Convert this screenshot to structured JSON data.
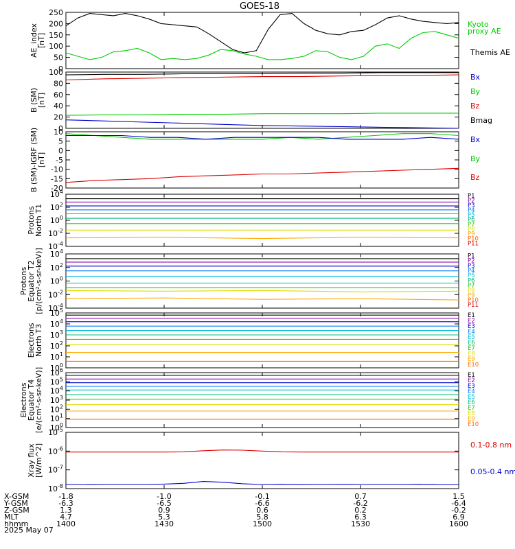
{
  "title": "GOES-18",
  "date_label": "2025 May 07",
  "colors": {
    "black": "#000000",
    "red": "#dd0000",
    "green": "#00cc00",
    "blue": "#0000cc",
    "p": [
      "#000000",
      "#8800aa",
      "#0000cc",
      "#0077ff",
      "#00bbdd",
      "#00bb77",
      "#22cc00",
      "#dddd00",
      "#ffaa00",
      "#ff6600",
      "#dd0000"
    ]
  },
  "chart_data": [
    {
      "type": "line",
      "panel": "ae",
      "ylabel": [
        "AE_index",
        "[nT]"
      ],
      "ylim": [
        0,
        250
      ],
      "yticks": [
        "250",
        "200",
        "150",
        "100",
        "50",
        "0"
      ],
      "legend": [
        {
          "label": "Kyoto",
          "color": "green"
        },
        {
          "label": "proxy AE",
          "color": "green"
        },
        {
          "label": "Themis AE",
          "color": "black"
        }
      ],
      "series": [
        {
          "name": "Themis AE",
          "color": "black",
          "values": [
            190,
            225,
            245,
            240,
            235,
            245,
            235,
            220,
            200,
            195,
            190,
            185,
            155,
            120,
            85,
            70,
            80,
            175,
            240,
            245,
            200,
            170,
            155,
            150,
            165,
            170,
            195,
            225,
            235,
            220,
            210,
            205,
            200,
            205
          ]
        },
        {
          "name": "Kyoto proxy AE",
          "color": "green",
          "values": [
            70,
            55,
            40,
            50,
            75,
            80,
            90,
            70,
            40,
            45,
            40,
            45,
            60,
            85,
            80,
            65,
            55,
            40,
            40,
            45,
            55,
            80,
            75,
            50,
            40,
            55,
            100,
            110,
            90,
            135,
            160,
            165,
            150,
            135
          ]
        }
      ]
    },
    {
      "type": "line",
      "panel": "bsm",
      "ylabel": [
        "B (SM)",
        "[nT]"
      ],
      "ylim": [
        0,
        100
      ],
      "yticks": [
        "100",
        "80",
        "60",
        "40",
        "20",
        "0"
      ],
      "legend": [
        {
          "label": "Bx",
          "color": "blue"
        },
        {
          "label": "By",
          "color": "green"
        },
        {
          "label": "Bz",
          "color": "red"
        },
        {
          "label": "Bmag",
          "color": "black"
        }
      ],
      "series": [
        {
          "name": "Bmag",
          "color": "black",
          "values": [
            95,
            96,
            96,
            97,
            97,
            97,
            98,
            98,
            99,
            99,
            99
          ]
        },
        {
          "name": "Bz",
          "color": "red",
          "values": [
            86,
            88,
            89,
            90,
            91,
            92,
            92,
            93,
            94,
            94,
            95
          ]
        },
        {
          "name": "By",
          "color": "green",
          "values": [
            23,
            24,
            24,
            25,
            25,
            26,
            26,
            26,
            27,
            27,
            27
          ]
        },
        {
          "name": "Bx",
          "color": "blue",
          "values": [
            15,
            13,
            11,
            9,
            7,
            5,
            4,
            3,
            2,
            1,
            0
          ]
        }
      ]
    },
    {
      "type": "line",
      "panel": "bigrf",
      "ylabel": [
        "B (SM)-IGRF (SM)",
        "[nT]"
      ],
      "ylim": [
        -20,
        10
      ],
      "yticks": [
        "10",
        "5",
        "0",
        "-5",
        "-10",
        "-15",
        "-20"
      ],
      "legend": [
        {
          "label": "Bx",
          "color": "blue"
        },
        {
          "label": "By",
          "color": "green"
        },
        {
          "label": "Bz",
          "color": "red"
        }
      ],
      "series": [
        {
          "name": "By",
          "color": "green",
          "values": [
            9,
            8,
            7,
            6,
            6,
            6,
            6,
            6,
            7,
            6,
            7,
            8,
            9,
            9,
            8
          ]
        },
        {
          "name": "Bx",
          "color": "blue",
          "values": [
            8,
            8,
            8,
            7,
            7,
            6,
            7,
            7,
            7,
            7,
            6,
            6,
            6,
            7,
            6
          ]
        },
        {
          "name": "Bz",
          "color": "red",
          "values": [
            -17,
            -16,
            -15.5,
            -15,
            -14,
            -13.5,
            -13,
            -12.5,
            -12.5,
            -12,
            -11.5,
            -11,
            -10.5,
            -10,
            -9.5
          ]
        }
      ]
    },
    {
      "type": "line",
      "panel": "pnorth",
      "log": true,
      "ylabel": [
        "Protons",
        "North T1"
      ],
      "ylim": [
        -4,
        4
      ],
      "ytick_exps": [
        "4",
        "2",
        "0",
        "-2",
        "-4"
      ],
      "legend": [
        "P1",
        "P2",
        "P3",
        "P4",
        "P5",
        "P6",
        "P7",
        "P8",
        "P9",
        "P10",
        "P11"
      ],
      "series": [
        {
          "name": "P1",
          "values": [
            3.3,
            3.3,
            3.3,
            3.3,
            3.3
          ]
        },
        {
          "name": "P2",
          "values": [
            2.8,
            2.8,
            2.8,
            2.8,
            2.8
          ]
        },
        {
          "name": "P3",
          "values": [
            2.2,
            2.2,
            2.2,
            2.2,
            2.2
          ]
        },
        {
          "name": "P4",
          "values": [
            1.6,
            1.6,
            1.6,
            1.6,
            1.6
          ]
        },
        {
          "name": "P5",
          "values": [
            1.0,
            1.0,
            1.0,
            1.0,
            1.0
          ]
        },
        {
          "name": "P6",
          "values": [
            0.3,
            0.3,
            0.3,
            0.3,
            0.3
          ]
        },
        {
          "name": "P7",
          "values": [
            -0.5,
            -0.5,
            -0.5,
            -0.5,
            -0.5
          ]
        },
        {
          "name": "P8",
          "values": [
            -1.5,
            -1.5,
            -1.5,
            -1.5,
            -1.5
          ]
        },
        {
          "name": "P9",
          "values": [
            -2.7,
            -2.6,
            -2.8,
            -2.6,
            -2.7
          ]
        }
      ]
    },
    {
      "type": "line",
      "panel": "peq",
      "log": true,
      "ylabel": [
        "Protons",
        "Equator T2",
        "[p/(cm²-s-sr-keV)]"
      ],
      "ylim": [
        -4,
        4
      ],
      "ytick_exps": [
        "4",
        "2",
        "0",
        "-2",
        "-4"
      ],
      "legend": [
        "P1",
        "P2",
        "P3",
        "P4",
        "P5",
        "P6",
        "P7",
        "P8",
        "P9",
        "P10",
        "P11"
      ],
      "series": [
        {
          "name": "P1",
          "values": [
            3.3,
            3.3,
            3.3,
            3.3,
            3.3
          ]
        },
        {
          "name": "P2",
          "values": [
            2.8,
            2.8,
            2.8,
            2.8,
            2.8
          ]
        },
        {
          "name": "P3",
          "values": [
            2.2,
            2.2,
            2.2,
            2.2,
            2.2
          ]
        },
        {
          "name": "P4",
          "values": [
            1.5,
            1.5,
            1.5,
            1.5,
            1.5
          ]
        },
        {
          "name": "P5",
          "values": [
            0.7,
            0.7,
            0.7,
            0.7,
            0.7
          ]
        },
        {
          "name": "P6",
          "values": [
            -0.3,
            -0.3,
            -0.3,
            -0.3,
            -0.3
          ]
        },
        {
          "name": "P7",
          "values": [
            -1.0,
            -1.0,
            -1.0,
            -1.0,
            -1.0
          ]
        },
        {
          "name": "P8",
          "values": [
            -1.4,
            -1.5,
            -1.4,
            -1.6,
            -1.5
          ]
        },
        {
          "name": "P9",
          "values": [
            -2.6,
            -2.5,
            -2.7,
            -2.6,
            -2.8
          ]
        }
      ]
    },
    {
      "type": "line",
      "panel": "enorth",
      "log": true,
      "ylabel": [
        "Electrons",
        "North T3"
      ],
      "ylim": [
        0,
        5
      ],
      "ytick_exps": [
        "5",
        "4",
        "3",
        "2",
        "1",
        "0"
      ],
      "legend": [
        "E1",
        "E2",
        "E3",
        "E4",
        "E5",
        "E6",
        "E7",
        "E8",
        "E9",
        "E10"
      ],
      "series": [
        {
          "name": "E1",
          "values": [
            4.8,
            4.8,
            4.8,
            4.8,
            4.8
          ]
        },
        {
          "name": "E2",
          "values": [
            4.5,
            4.5,
            4.5,
            4.5,
            4.5
          ]
        },
        {
          "name": "E3",
          "values": [
            4.2,
            4.2,
            4.2,
            4.2,
            4.2
          ]
        },
        {
          "name": "E4",
          "values": [
            3.8,
            3.8,
            3.8,
            3.8,
            3.8
          ]
        },
        {
          "name": "E5",
          "values": [
            3.4,
            3.4,
            3.4,
            3.4,
            3.4
          ]
        },
        {
          "name": "E6",
          "values": [
            3.0,
            3.0,
            3.0,
            3.0,
            3.0
          ]
        },
        {
          "name": "E7",
          "values": [
            2.6,
            2.6,
            2.6,
            2.6,
            2.6
          ]
        },
        {
          "name": "E8",
          "values": [
            2.1,
            2.1,
            2.1,
            2.1,
            2.1
          ]
        },
        {
          "name": "E9",
          "values": [
            1.4,
            1.4,
            1.4,
            1.4,
            1.4
          ]
        },
        {
          "name": "E10",
          "values": [
            0.6,
            0.6,
            0.6,
            0.6,
            0.6
          ]
        }
      ]
    },
    {
      "type": "line",
      "panel": "eeq",
      "log": true,
      "ylabel": [
        "Electrons",
        "Equator T4",
        "[e/(cm²-s-sr-keV)]"
      ],
      "ylim": [
        0,
        6
      ],
      "ytick_exps": [
        "6",
        "5",
        "4",
        "3",
        "2",
        "1",
        "0"
      ],
      "legend": [
        "E1",
        "E2",
        "E3",
        "E4",
        "E5",
        "E6",
        "E7",
        "E8",
        "E9",
        "E10"
      ],
      "series": [
        {
          "name": "E1",
          "values": [
            5.7,
            5.7,
            5.7,
            5.7,
            5.7
          ]
        },
        {
          "name": "E2",
          "values": [
            5.3,
            5.3,
            5.3,
            5.3,
            5.3
          ]
        },
        {
          "name": "E3",
          "values": [
            4.9,
            4.9,
            4.9,
            4.9,
            4.9
          ]
        },
        {
          "name": "E4",
          "values": [
            4.5,
            4.5,
            4.5,
            4.5,
            4.5
          ]
        },
        {
          "name": "E5",
          "values": [
            4.1,
            4.1,
            4.1,
            4.1,
            4.1
          ]
        },
        {
          "name": "E6",
          "values": [
            3.6,
            3.6,
            3.6,
            3.6,
            3.6
          ]
        },
        {
          "name": "E7",
          "values": [
            3.1,
            3.1,
            3.1,
            3.1,
            3.1
          ]
        },
        {
          "name": "E8",
          "values": [
            2.5,
            2.5,
            2.5,
            2.5,
            2.5
          ]
        },
        {
          "name": "E9",
          "values": [
            1.8,
            1.8,
            1.8,
            1.8,
            1.8
          ]
        },
        {
          "name": "E10",
          "values": [
            0.9,
            0.9,
            0.9,
            0.9,
            0.9
          ]
        }
      ]
    },
    {
      "type": "line",
      "panel": "xray",
      "log": true,
      "ylabel": [
        "Xray flux",
        "[W/m^2]"
      ],
      "ylim": [
        -8,
        -5
      ],
      "ytick_exps": [
        "-5",
        "-6",
        "-7",
        "-8"
      ],
      "legend": [
        {
          "label": "0.1-0.8 nm",
          "color": "red"
        },
        {
          "label": "0.05-0.4 nm",
          "color": "blue"
        }
      ],
      "series": [
        {
          "name": "0.1-0.8 nm",
          "color": "red",
          "values": [
            -6.05,
            -6.05,
            -6.05,
            -6.05,
            -6.05,
            -6.05,
            -6.04,
            -5.98,
            -5.94,
            -5.95,
            -6.0,
            -6.04,
            -6.05,
            -6.05,
            -6.05,
            -6.05,
            -6.05,
            -6.05,
            -6.05,
            -6.05,
            -6.05
          ]
        },
        {
          "name": "0.05-0.4 nm",
          "color": "blue",
          "values": [
            -7.78,
            -7.8,
            -7.78,
            -7.78,
            -7.78,
            -7.76,
            -7.72,
            -7.62,
            -7.66,
            -7.74,
            -7.78,
            -7.77,
            -7.79,
            -7.78,
            -7.77,
            -7.78,
            -7.78,
            -7.78,
            -7.77,
            -7.8,
            -7.8
          ]
        }
      ]
    }
  ],
  "x_axis": {
    "row_labels": [
      "X-GSM",
      "Y-GSM",
      "Z-GSM",
      "MLT",
      "hhmm"
    ],
    "ticks": [
      {
        "values": [
          "-1.8",
          "-6.3",
          "1.3",
          "4.7",
          "1400"
        ]
      },
      {
        "values": [
          "-1.0",
          "-6.5",
          "0.9",
          "5.3",
          "1430"
        ]
      },
      {
        "values": [
          "-0.1",
          "-6.6",
          "0.6",
          "5.8",
          "1500"
        ]
      },
      {
        "values": [
          "0.7",
          "-6.2",
          "0.2",
          "6.3",
          "1530"
        ]
      },
      {
        "values": [
          "1.5",
          "-6.4",
          "-0.2",
          "6.9",
          "1600"
        ]
      }
    ]
  }
}
